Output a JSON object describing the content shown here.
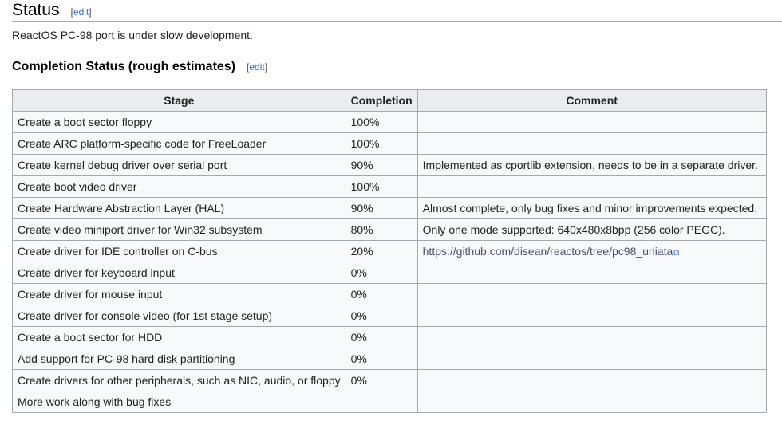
{
  "section": {
    "title": "Status",
    "edit": "edit",
    "text": "ReactOS PC-98 port is under slow development."
  },
  "subsection": {
    "title": "Completion Status (rough estimates)",
    "edit": "edit"
  },
  "table": {
    "headers": [
      "Stage",
      "Completion",
      "Comment"
    ],
    "rows": [
      {
        "stage": "Create a boot sector floppy",
        "completion": "100%",
        "comment": ""
      },
      {
        "stage": "Create ARC platform-specific code for FreeLoader",
        "completion": "100%",
        "comment": ""
      },
      {
        "stage": "Create kernel debug driver over serial port",
        "completion": "90%",
        "comment": "Implemented as cportlib extension, needs to be in a separate driver."
      },
      {
        "stage": "Create boot video driver",
        "completion": "100%",
        "comment": ""
      },
      {
        "stage": "Create Hardware Abstraction Layer (HAL)",
        "completion": "90%",
        "comment": "Almost complete, only bug fixes and minor improvements expected."
      },
      {
        "stage": "Create video miniport driver for Win32 subsystem",
        "completion": "80%",
        "comment": "Only one mode supported: 640x480x8bpp (256 color PEGC)."
      },
      {
        "stage": "Create driver for IDE controller on C-bus",
        "completion": "20%",
        "comment": "https://github.com/disean/reactos/tree/pc98_uniata",
        "link": true
      },
      {
        "stage": "Create driver for keyboard input",
        "completion": "0%",
        "comment": ""
      },
      {
        "stage": "Create driver for mouse input",
        "completion": "0%",
        "comment": ""
      },
      {
        "stage": "Create driver for console video (for 1st stage setup)",
        "completion": "0%",
        "comment": ""
      },
      {
        "stage": "Create a boot sector for HDD",
        "completion": "0%",
        "comment": ""
      },
      {
        "stage": "Add support for PC-98 hard disk partitioning",
        "completion": "0%",
        "comment": ""
      },
      {
        "stage": "Create drivers for other peripherals, such as NIC, audio, or floppy",
        "completion": "0%",
        "comment": ""
      },
      {
        "stage": "More work along with bug fixes",
        "completion": "",
        "comment": ""
      }
    ]
  }
}
